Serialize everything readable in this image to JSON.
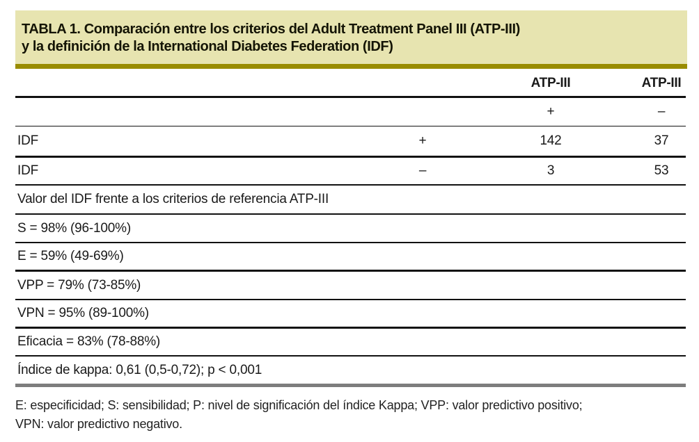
{
  "title": {
    "line1": "TABLA 1. Comparación entre los criterios del Adult Treatment Panel III (ATP-III)",
    "line2": "y la definición de la International Diabetes Federation (IDF)"
  },
  "colors": {
    "title_background": "#e7e4b0",
    "accent_bar": "#998c00",
    "rule_black": "#111111",
    "rule_gray": "#7d7d7d",
    "text": "#1a1a1a"
  },
  "chart_data": {
    "type": "table",
    "col_headers": [
      "ATP-III",
      "ATP-III"
    ],
    "col_subheaders": [
      "+",
      "–"
    ],
    "matrix_rows": [
      {
        "label": "IDF",
        "sign": "+",
        "atp_pos": "142",
        "atp_neg": "37"
      },
      {
        "label": "IDF",
        "sign": "–",
        "atp_pos": "3",
        "atp_neg": "53"
      }
    ],
    "results_intro": "Valor del IDF frente a los criterios de referencia ATP-III",
    "results": {
      "sensibilidad": "S = 98% (96-100%)",
      "especificidad": "E = 59% (49-69%)",
      "vpp": "VPP = 79% (73-85%)",
      "vpn": "VPN = 95% (89-100%)",
      "eficacia": "Eficacia = 83% (78-88%)",
      "kappa": "Índice de kappa: 0,61 (0,5-0,72); p < 0,001"
    }
  },
  "footnote": {
    "line1": "E: especificidad; S: sensibilidad; P: nivel de significación del índice Kappa; VPP: valor predictivo positivo;",
    "line2": "VPN: valor predictivo negativo."
  }
}
